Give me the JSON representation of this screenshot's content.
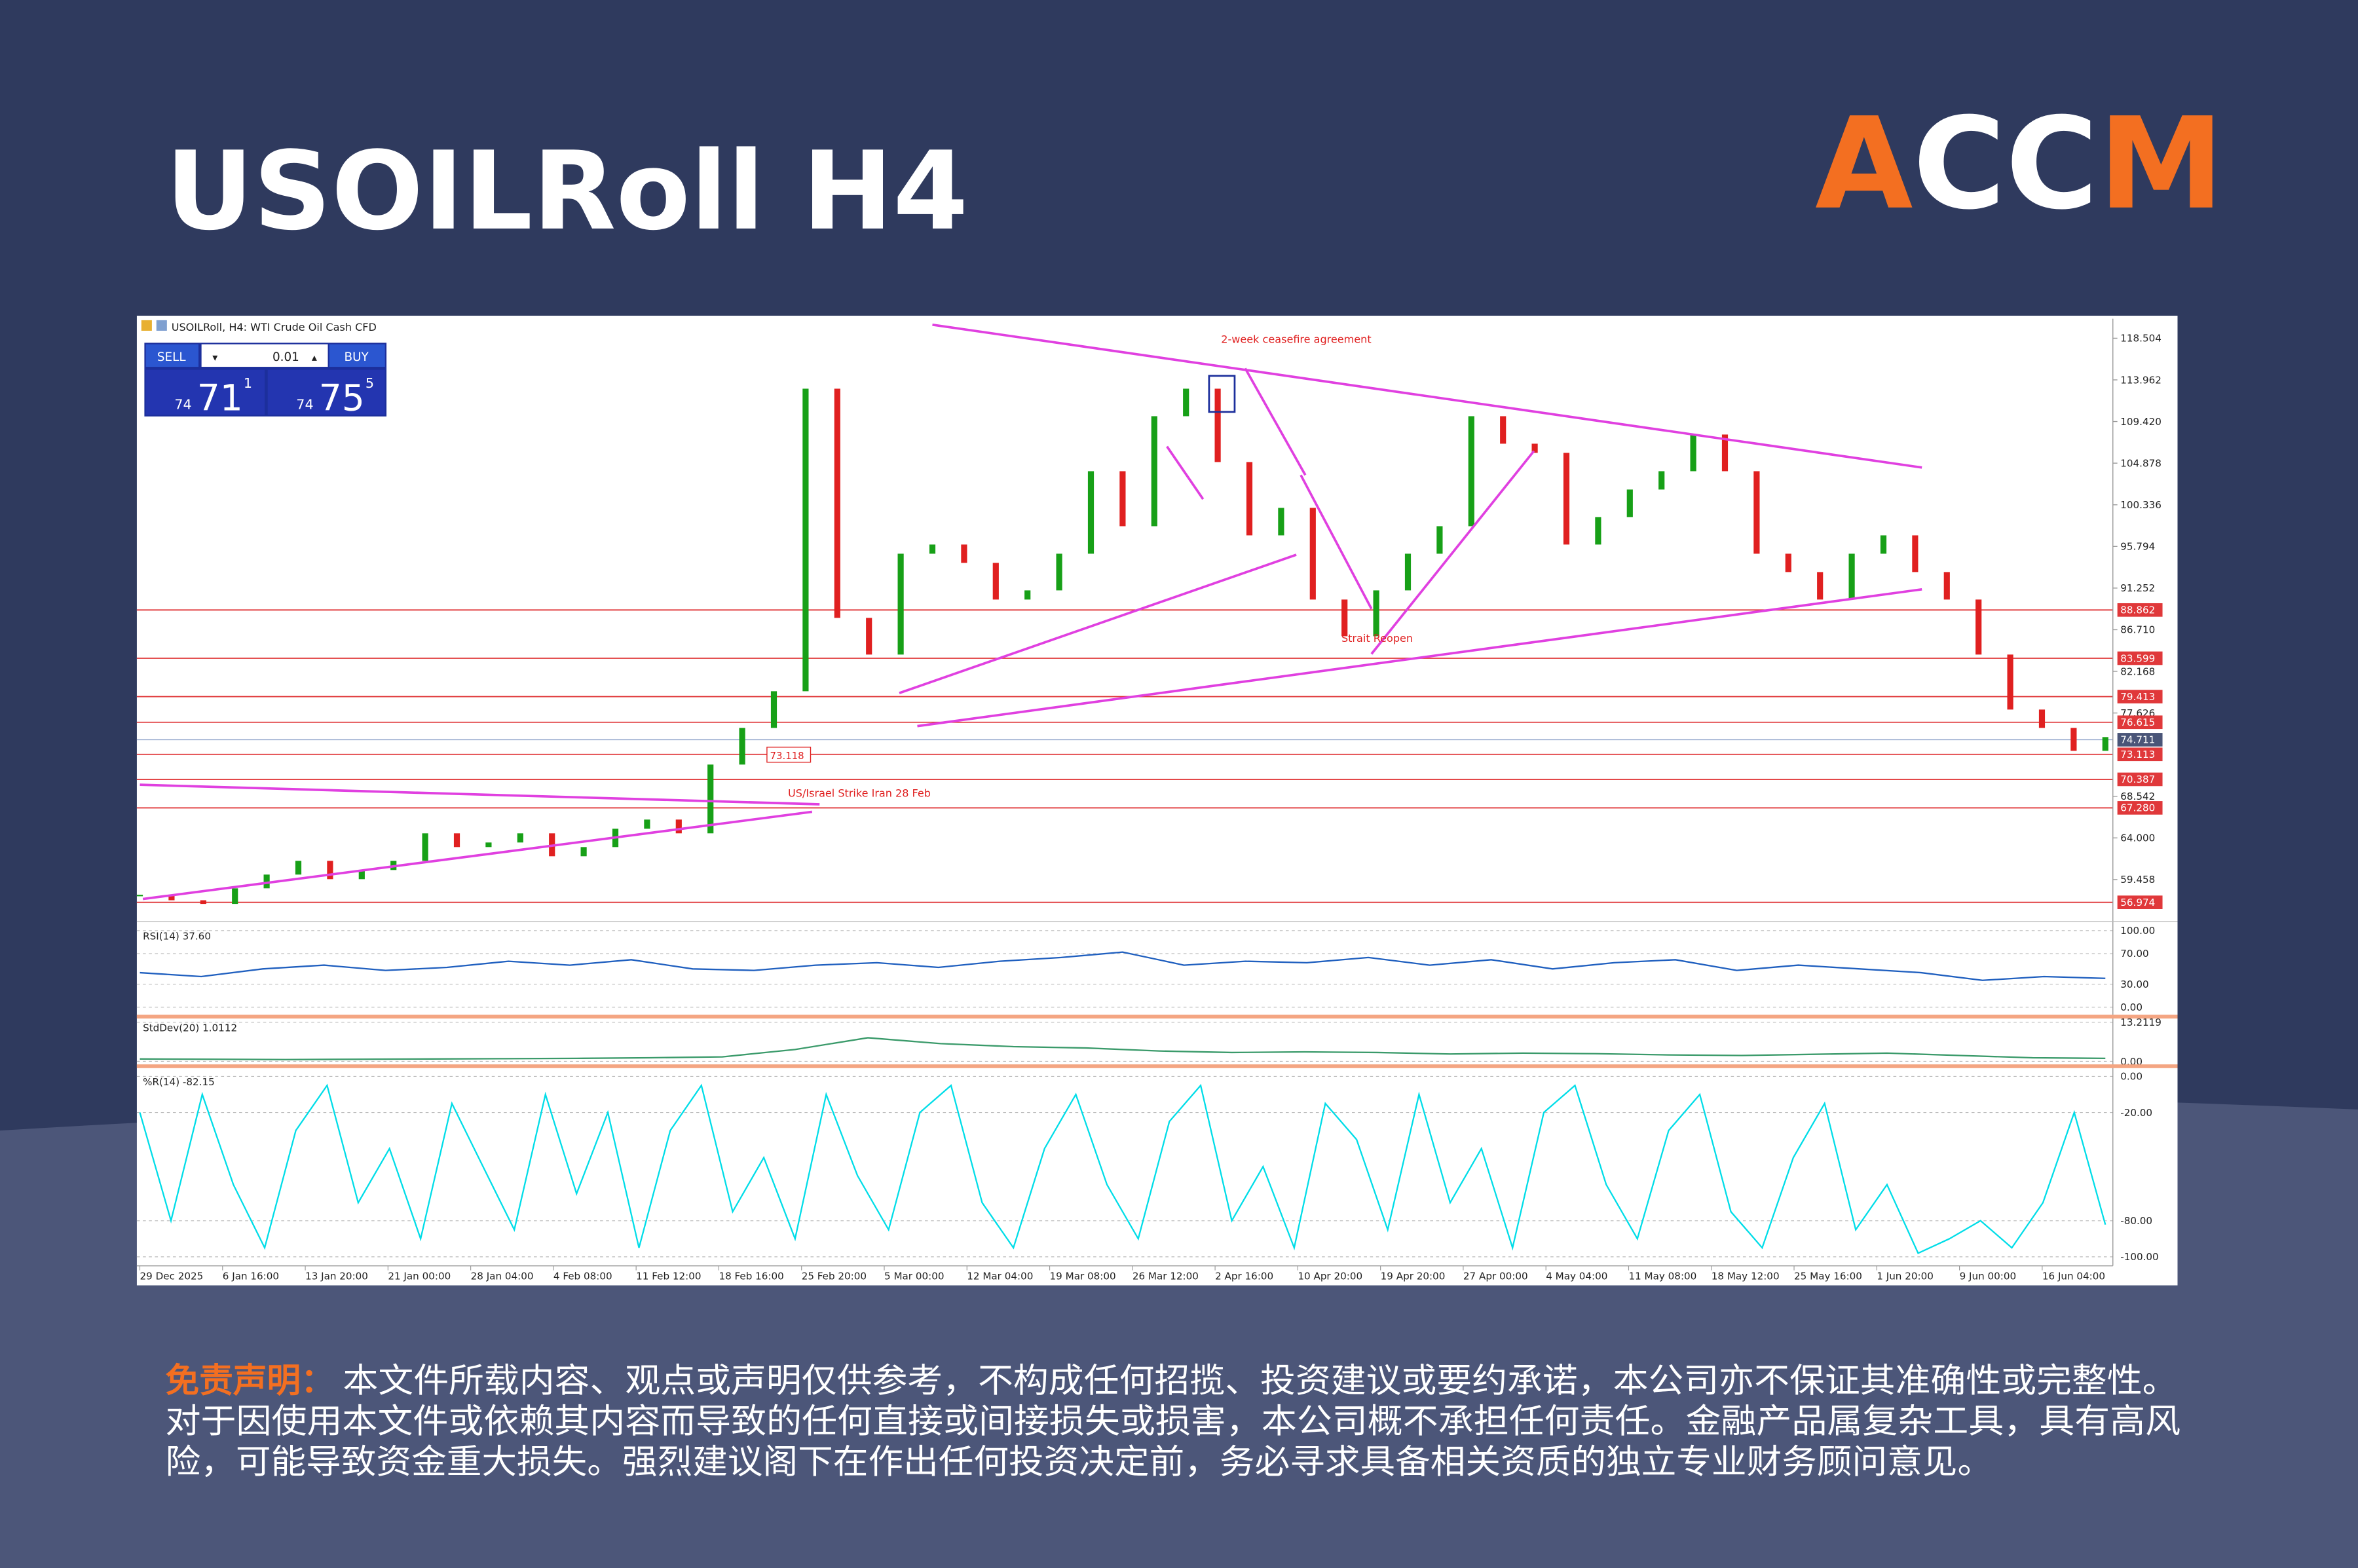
{
  "header": {
    "title": "USOILRoll H4",
    "logo_a": "A",
    "logo_cc": "CC",
    "logo_m": "M"
  },
  "chart": {
    "symbol_label": "USOILRoll, H4: WTI Crude Oil Cash CFD",
    "trade_panel": {
      "sell": "SELL",
      "lot": "0.01",
      "buy": "BUY",
      "bid_prefix": "74",
      "bid_big": "71",
      "bid_small": "1",
      "ask_prefix": "74",
      "ask_big": "75",
      "ask_small": "5"
    },
    "annotations": {
      "ceasefire": "2-week ceasefire agreement",
      "strait": "Strait Reopen",
      "strike": "US/Israel Strike Iran 28 Feb",
      "box": "73.118"
    },
    "ylim": [
      55.04,
      120.47
    ],
    "yticks": [
      118.504,
      113.962,
      {
        "value": 109.42,
        "label": "109.420"
      },
      104.878,
      100.336,
      95.794,
      91.252,
      {
        "value": 86.71,
        "label": "86.710"
      },
      82.168,
      77.626,
      68.542,
      {
        "value": 64,
        "label": "64.000"
      },
      59.458
    ],
    "levels": [
      88.862,
      83.599,
      79.413,
      76.615,
      73.113,
      70.387,
      {
        "value": 67.28,
        "label": "67.280"
      },
      56.974
    ],
    "level_color": "#e0383a",
    "current_price": 74.711,
    "dates": [
      "29 Dec 2025",
      "6 Jan 16:00",
      "13 Jan 20:00",
      "21 Jan 00:00",
      "28 Jan 04:00",
      "4 Feb 08:00",
      "11 Feb 12:00",
      "18 Feb 16:00",
      "25 Feb 20:00",
      "5 Mar 00:00",
      "12 Mar 04:00",
      "19 Mar 08:00",
      "26 Mar 12:00",
      "2 Apr 16:00",
      "10 Apr 20:00",
      "19 Apr 20:00",
      "27 Apr 00:00",
      "4 May 04:00",
      "11 May 08:00",
      "18 May 12:00",
      "25 May 16:00",
      "1 Jun 20:00",
      "9 Jun 00:00",
      "16 Jun 04:00"
    ],
    "price": {
      "up_color": "#17a017",
      "down_color": "#e02020",
      "values": [
        57.8,
        57.2,
        56.8,
        58.5,
        60,
        61.5,
        59.5,
        60.5,
        61.5,
        64.5,
        63,
        63.5,
        64.5,
        62,
        63,
        65,
        66,
        64.5,
        72,
        76,
        80,
        113,
        88,
        84,
        95,
        96,
        94,
        90,
        91,
        95,
        104,
        98,
        110,
        113,
        105,
        97,
        100,
        90,
        86,
        91,
        95,
        98,
        110,
        107,
        106,
        96,
        99,
        102,
        104,
        108,
        104,
        95,
        93,
        90,
        95,
        97,
        93,
        90,
        84,
        78,
        76,
        73.5,
        75
      ]
    }
  },
  "indicators": {
    "rsi": {
      "label": "RSI(14) 37.60",
      "color": "#1f5fbf",
      "ylim": [
        0,
        100
      ],
      "ticks": [
        {
          "value": 100,
          "label": "100.00"
        },
        {
          "value": 70,
          "label": "70.00"
        },
        {
          "value": 30,
          "label": "30.00"
        },
        {
          "value": 0,
          "label": "0.00"
        }
      ],
      "values": [
        45,
        40,
        50,
        55,
        48,
        52,
        60,
        55,
        62,
        50,
        48,
        55,
        58,
        52,
        60,
        65,
        72,
        55,
        60,
        58,
        65,
        55,
        62,
        50,
        58,
        62,
        48,
        55,
        50,
        45,
        35,
        40,
        37.6
      ]
    },
    "stddev": {
      "label": "StdDev(20) 1.0112",
      "color": "#3a9a6a",
      "ylim": [
        0,
        13.2119
      ],
      "ticks": [
        13.2119,
        {
          "value": 0,
          "label": "0.00"
        }
      ],
      "values": [
        0.8,
        0.7,
        0.6,
        0.7,
        0.8,
        0.9,
        1,
        1.2,
        1.5,
        4,
        8,
        6,
        5,
        4.5,
        3.5,
        3,
        3.2,
        3,
        2.5,
        2.8,
        2.6,
        2.2,
        2,
        2.4,
        2.8,
        2,
        1.2,
        1.0112
      ]
    },
    "willr": {
      "label": "%R(14) -82.15",
      "color": "#00dde8",
      "ylim": [
        -100,
        0
      ],
      "ticks": [
        {
          "value": 0,
          "label": "0.00"
        },
        {
          "value": -20,
          "label": "-20.00"
        },
        {
          "value": -80,
          "label": "-80.00"
        },
        {
          "value": -100,
          "label": "-100.00"
        }
      ],
      "values": [
        -20,
        -80,
        -10,
        -60,
        -95,
        -30,
        -5,
        -70,
        -40,
        -90,
        -15,
        -50,
        -85,
        -10,
        -65,
        -20,
        -95,
        -30,
        -5,
        -75,
        -45,
        -90,
        -10,
        -55,
        -85,
        -20,
        -5,
        -70,
        -95,
        -40,
        -10,
        -60,
        -90,
        -25,
        -5,
        -80,
        -50,
        -95,
        -15,
        -35,
        -85,
        -10,
        -70,
        -40,
        -95,
        -20,
        -5,
        -60,
        -90,
        -30,
        -10,
        -75,
        -95,
        -45,
        -15,
        -85,
        -60,
        -98,
        -90,
        -80,
        -95,
        -70,
        -20,
        -82.15
      ]
    }
  },
  "disclaimer": {
    "label": "免责声明：",
    "lines": [
      "本文件所载内容、观点或声明仅供参考，不构成任何招揽、投资建议或要约承诺，本公司亦不保证其准确性或完整性。",
      "对于因使用本文件或依赖其内容而导致的任何直接或间接损失或损害，本公司概不承担任何责任。金融产品属复杂工具，具有高风",
      "险，可能导致资金重大损失。强烈建议阁下在作出任何投资决定前，务必寻求具备相关资质的独立专业财务顾问意见。"
    ]
  }
}
